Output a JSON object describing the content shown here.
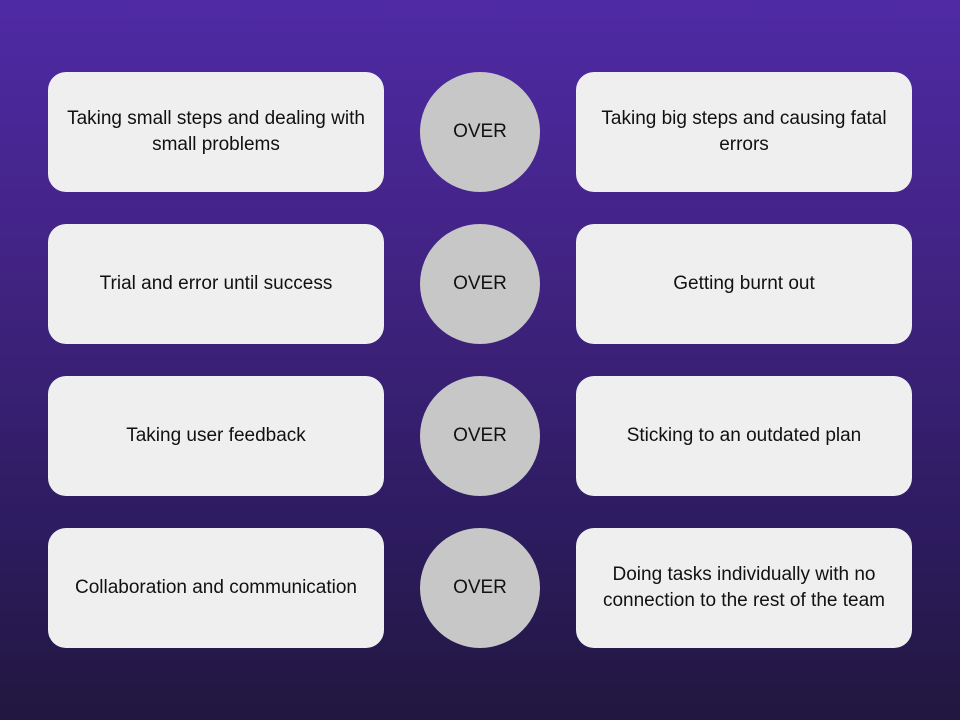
{
  "rows": [
    {
      "left": "Taking small steps and dealing with small problems",
      "connector": "OVER",
      "right": "Taking big steps and causing fatal errors"
    },
    {
      "left": "Trial and error until success",
      "connector": "OVER",
      "right": "Getting burnt out"
    },
    {
      "left": "Taking user feedback",
      "connector": "OVER",
      "right": "Sticking to an outdated plan"
    },
    {
      "left": "Collaboration and communication",
      "connector": "OVER",
      "right": "Doing tasks individually with no connection to the rest of the team"
    }
  ]
}
